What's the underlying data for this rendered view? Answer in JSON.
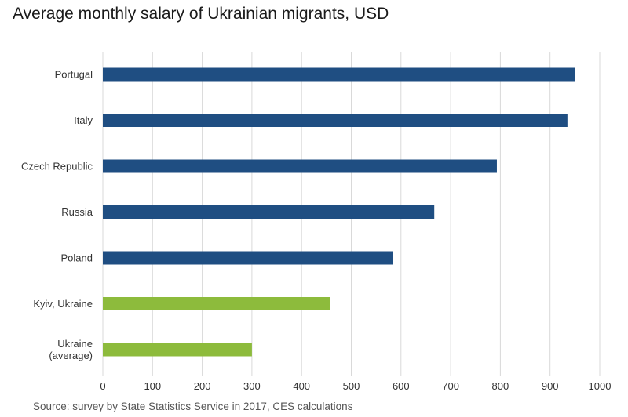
{
  "chart_data": {
    "type": "bar",
    "orientation": "horizontal",
    "title": "Average monthly salary of Ukrainian migrants, USD",
    "source": "Source: survey by State Statistics Service in 2017, CES calculations",
    "categories": [
      [
        "Portugal"
      ],
      [
        "Italy"
      ],
      [
        "Czech Republic"
      ],
      [
        "Russia"
      ],
      [
        "Poland"
      ],
      [
        "Kyiv, Ukraine"
      ],
      [
        "Ukraine",
        "(average)"
      ]
    ],
    "values": [
      950,
      935,
      793,
      667,
      584,
      458,
      300
    ],
    "highlight": [
      false,
      false,
      false,
      false,
      false,
      true,
      true
    ],
    "xlim": [
      0,
      1000
    ],
    "xticks": [
      0,
      100,
      200,
      300,
      400,
      500,
      600,
      700,
      800,
      900,
      1000
    ],
    "xlabel": "",
    "ylabel": "",
    "grid": true,
    "colors": {
      "foreign": "#1f4e82",
      "ukraine": "#8dbb3c",
      "grid": "#d9d9d9",
      "text": "#333333"
    }
  }
}
